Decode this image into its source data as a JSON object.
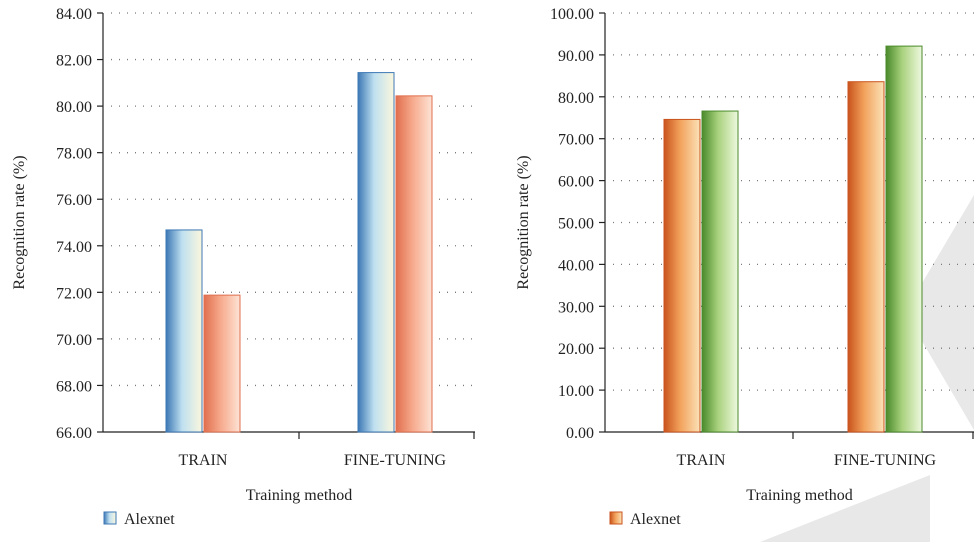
{
  "chart_data": [
    {
      "type": "bar",
      "categories": [
        "TRAIN",
        "FINE-TUNING"
      ],
      "series": [
        {
          "name": "Alexnet",
          "values": [
            74.68,
            81.44
          ],
          "colors": [
            "#3d78b5",
            "#bfe0f0",
            "#fbf7dd"
          ]
        },
        {
          "values": [
            71.88,
            80.44
          ],
          "colors": [
            "#e06f4e",
            "#f6a88b",
            "#fde3d5"
          ]
        }
      ],
      "xlabel": "Training method",
      "ylabel": "Recognition rate (%)",
      "ylim": [
        66,
        84
      ],
      "yticks": [
        "66.00",
        "68.00",
        "70.00",
        "72.00",
        "74.00",
        "76.00",
        "78.00",
        "80.00",
        "82.00",
        "84.00"
      ],
      "grid": true,
      "legend": {
        "placement": "bottom-left",
        "entries": [
          "Alexnet"
        ]
      }
    },
    {
      "type": "bar",
      "categories": [
        "TRAIN",
        "FINE-TUNING"
      ],
      "series": [
        {
          "name": "Alexnet",
          "values": [
            74.6,
            83.6
          ],
          "colors": [
            "#c9531c",
            "#f2a25c",
            "#fbe2b8"
          ]
        },
        {
          "values": [
            76.6,
            92.1
          ],
          "colors": [
            "#4a8a2b",
            "#a9d27e",
            "#eef8df"
          ]
        }
      ],
      "xlabel": "Training method",
      "ylabel": "Recognition rate (%)",
      "ylim": [
        0,
        100
      ],
      "yticks": [
        "0.00",
        "10.00",
        "20.00",
        "30.00",
        "40.00",
        "50.00",
        "60.00",
        "70.00",
        "80.00",
        "90.00",
        "100.00"
      ],
      "grid": true,
      "legend": {
        "placement": "bottom-left",
        "entries": [
          "Alexnet"
        ]
      }
    }
  ]
}
